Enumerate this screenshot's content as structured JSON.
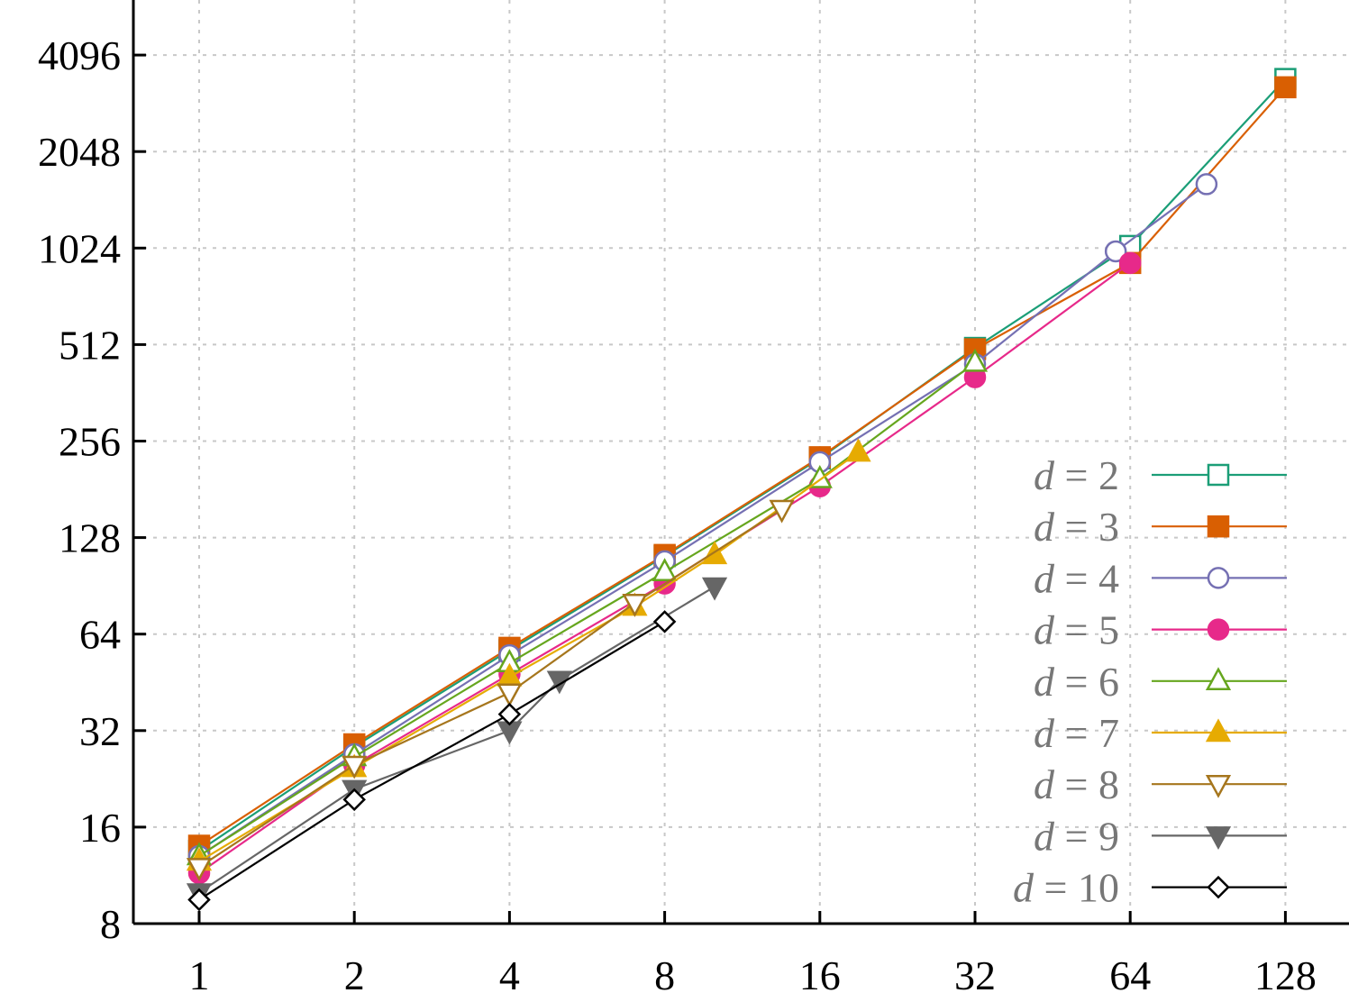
{
  "chart_data": {
    "type": "line",
    "title": "",
    "xlabel": "",
    "ylabel": "",
    "x_scale": "log2",
    "y_scale": "log2",
    "xlim": [
      0.9,
      150
    ],
    "ylim": [
      8,
      6000
    ],
    "x_ticks": [
      1,
      2,
      4,
      8,
      16,
      32,
      64,
      128
    ],
    "x_tick_labels": [
      "1",
      "2",
      "4",
      "8",
      "16",
      "32",
      "64",
      "128"
    ],
    "y_ticks": [
      8,
      16,
      32,
      64,
      128,
      256,
      512,
      1024,
      2048,
      4096
    ],
    "y_tick_labels": [
      "8",
      "16",
      "32",
      "64",
      "128",
      "256",
      "512",
      "1024",
      "2048",
      "4096"
    ],
    "grid": true,
    "legend_position": "bottom-right",
    "series": [
      {
        "name": "d =   2",
        "color": "#1b9e77",
        "marker": "square-open",
        "points": [
          [
            1,
            13.5
          ],
          [
            2,
            28.5
          ],
          [
            4,
            57
          ],
          [
            8,
            112
          ],
          [
            16,
            226
          ],
          [
            32,
            500
          ],
          [
            64,
            1040
          ],
          [
            128,
            3450
          ]
        ]
      },
      {
        "name": "d =   3",
        "color": "#d95f02",
        "marker": "square-filled",
        "points": [
          [
            1,
            14
          ],
          [
            2,
            29
          ],
          [
            4,
            58
          ],
          [
            8,
            113
          ],
          [
            16,
            228
          ],
          [
            32,
            495
          ],
          [
            64,
            920
          ],
          [
            128,
            3250
          ]
        ]
      },
      {
        "name": "d =   4",
        "color": "#7570b3",
        "marker": "circle-open",
        "points": [
          [
            1,
            13
          ],
          [
            2,
            27
          ],
          [
            4,
            55
          ],
          [
            8,
            108
          ],
          [
            16,
            220
          ],
          [
            32,
            445
          ],
          [
            60,
            1000
          ],
          [
            90,
            1620
          ]
        ]
      },
      {
        "name": "d =   5",
        "color": "#e7298a",
        "marker": "circle-filled",
        "points": [
          [
            1,
            11.5
          ],
          [
            2,
            25
          ],
          [
            4,
            48
          ],
          [
            8,
            92
          ],
          [
            16,
            185
          ],
          [
            32,
            405
          ],
          [
            64,
            920
          ]
        ]
      },
      {
        "name": "d =   6",
        "color": "#66a61e",
        "marker": "triangle-up-open",
        "points": [
          [
            1,
            13
          ],
          [
            2,
            26.5
          ],
          [
            4,
            52
          ],
          [
            8,
            100
          ],
          [
            16,
            195
          ],
          [
            32,
            450
          ]
        ]
      },
      {
        "name": "d =   7",
        "color": "#e6ab02",
        "marker": "triangle-up-filled",
        "points": [
          [
            1,
            12.5
          ],
          [
            2,
            24.5
          ],
          [
            4,
            47
          ],
          [
            7,
            78
          ],
          [
            10,
            113
          ],
          [
            19,
            236
          ]
        ]
      },
      {
        "name": "d =   8",
        "color": "#a6761d",
        "marker": "triangle-down-open",
        "points": [
          [
            1,
            12
          ],
          [
            2,
            25
          ],
          [
            4,
            42
          ],
          [
            7,
            80
          ],
          [
            13.5,
            157
          ]
        ]
      },
      {
        "name": "d =   9",
        "color": "#666666",
        "marker": "triangle-down-filled",
        "points": [
          [
            1,
            10
          ],
          [
            2,
            21
          ],
          [
            4,
            32
          ],
          [
            5,
            46
          ],
          [
            10,
            90
          ]
        ]
      },
      {
        "name": "d = 10",
        "color": "#000000",
        "marker": "diamond-open",
        "points": [
          [
            1,
            9.5
          ],
          [
            2,
            19.5
          ],
          [
            4,
            36
          ],
          [
            8,
            70
          ]
        ]
      }
    ]
  }
}
